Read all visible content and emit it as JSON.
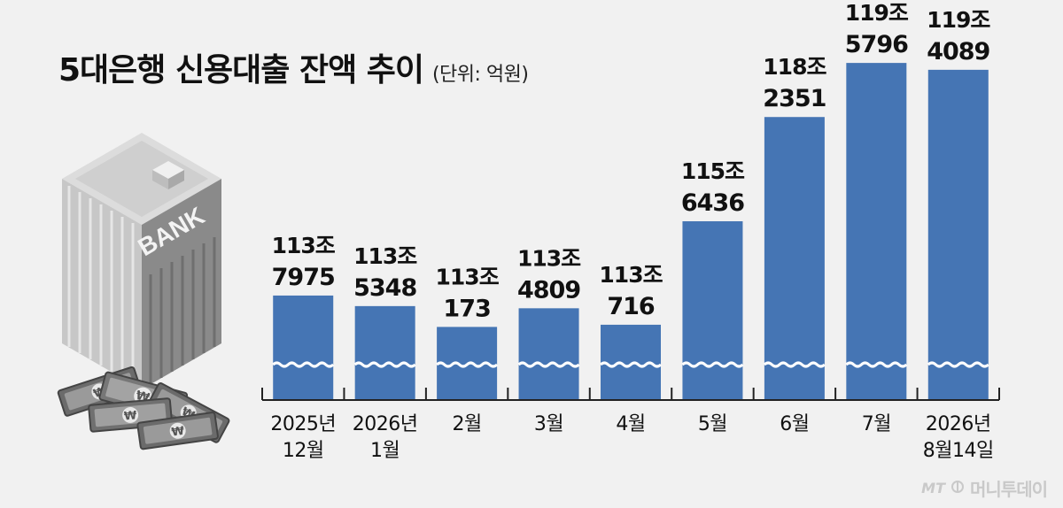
{
  "title": "5대은행 신용대출 잔액 추이",
  "unit_note": "(단위: 억원)",
  "illustration": {
    "building_sign": "BANK",
    "banknote_symbol": "₩"
  },
  "watermark": {
    "prefix": "MT",
    "name": "머니투데이"
  },
  "colors": {
    "bar": "#4575b4",
    "background": "#f1f1f1",
    "axis": "#222222"
  },
  "chart_data": {
    "type": "bar",
    "title": "5대은행 신용대출 잔액 추이",
    "unit": "억원",
    "axis_break": true,
    "categories": [
      [
        "2025년",
        "12월"
      ],
      [
        "2026년",
        "1월"
      ],
      [
        "2월"
      ],
      [
        "3월"
      ],
      [
        "4월"
      ],
      [
        "5월"
      ],
      [
        "6월"
      ],
      [
        "7월"
      ],
      [
        "2026년",
        "8월14일"
      ]
    ],
    "values": [
      1137975,
      1135348,
      1130173,
      1134809,
      1130716,
      1156436,
      1182351,
      1195796,
      1194089
    ],
    "data_labels": [
      [
        "113조",
        "7975"
      ],
      [
        "113조",
        "5348"
      ],
      [
        "113조",
        "173"
      ],
      [
        "113조",
        "4809"
      ],
      [
        "113조",
        "716"
      ],
      [
        "115조",
        "6436"
      ],
      [
        "118조",
        "2351"
      ],
      [
        "119조",
        "5796"
      ],
      [
        "119조",
        "4089"
      ]
    ],
    "ylim": [
      1112000,
      1200000
    ],
    "grid": false,
    "legend": "none"
  }
}
